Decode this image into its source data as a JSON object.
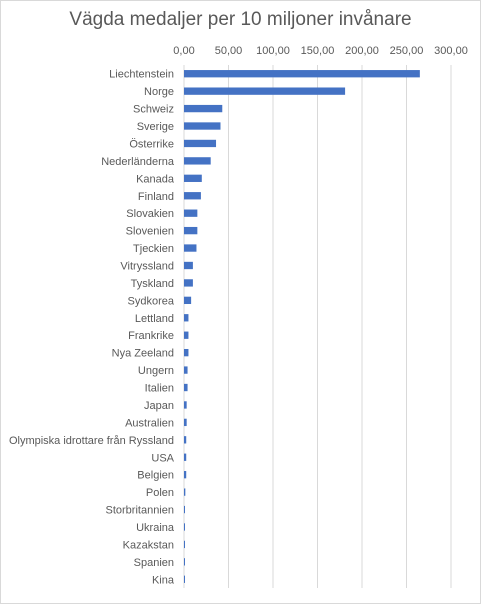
{
  "chart_data": {
    "type": "bar",
    "orientation": "horizontal",
    "title": "Vägda medaljer per 10 miljoner invånare",
    "xlabel": "",
    "ylabel": "",
    "xlim": [
      0,
      300
    ],
    "x_tick_values": [
      0,
      50,
      100,
      150,
      200,
      250,
      300
    ],
    "x_tick_labels": [
      "0,00",
      "50,00",
      "100,00",
      "150,00",
      "200,00",
      "250,00",
      "300,00"
    ],
    "x_axis_position": "top",
    "grid": true,
    "legend": "none",
    "bar_color": "#4472c4",
    "gridline_color": "#d9d9d9",
    "categories": [
      "Liechtenstein",
      "Norge",
      "Schweiz",
      "Sverige",
      "Österrike",
      "Nederländerna",
      "Kanada",
      "Finland",
      "Slovakien",
      "Slovenien",
      "Tjeckien",
      "Vitryssland",
      "Tyskland",
      "Sydkorea",
      "Lettland",
      "Frankrike",
      "Nya Zeeland",
      "Ungern",
      "Italien",
      "Japan",
      "Australien",
      "Olympiska idrottare från Ryssland",
      "USA",
      "Belgien",
      "Polen",
      "Storbritannien",
      "Ukraina",
      "Kazakstan",
      "Spanien",
      "Kina"
    ],
    "values": [
      265,
      181,
      43,
      41,
      36,
      30,
      20,
      19,
      15,
      15,
      14,
      10,
      10,
      8,
      5,
      5,
      5,
      4,
      4,
      3,
      3,
      2.5,
      2.5,
      2.5,
      1.5,
      1,
      1,
      1,
      0.8,
      0.5
    ]
  }
}
